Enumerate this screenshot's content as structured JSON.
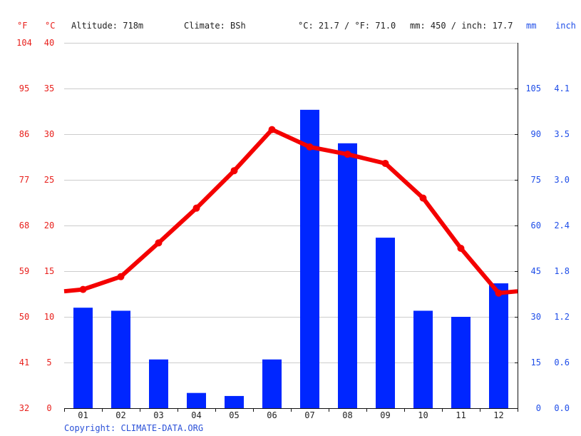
{
  "header": {
    "unit_f": "°F",
    "unit_c": "°C",
    "altitude": "Altitude: 718m",
    "climate": "Climate: BSh",
    "avg_temp": "°C: 21.7 / °F: 71.0",
    "precip_total": "mm: 450 / inch: 17.7",
    "unit_mm": "mm",
    "unit_inch": "inch"
  },
  "footer": {
    "copyright": "Copyright: CLIMATE-DATA.ORG"
  },
  "colors": {
    "temperature": "#f40000",
    "precipitation": "#0026ff",
    "grid": "#cccccc"
  },
  "chart_data": {
    "type": "bar+line",
    "categories": [
      "01",
      "02",
      "03",
      "04",
      "05",
      "06",
      "07",
      "08",
      "09",
      "10",
      "11",
      "12"
    ],
    "series": [
      {
        "kind": "bar",
        "axis": "right",
        "unit": "mm",
        "values": [
          33,
          32,
          16,
          5,
          4,
          16,
          98,
          87,
          56,
          32,
          30,
          41
        ]
      },
      {
        "kind": "line",
        "axis": "left",
        "unit": "°C",
        "values": [
          13.0,
          14.4,
          18.1,
          21.9,
          26.0,
          30.5,
          28.6,
          27.8,
          26.8,
          23.0,
          17.5,
          12.6
        ],
        "edge_values": [
          12.8,
          12.8
        ]
      }
    ],
    "left_axis_c": {
      "ticks": [
        "0",
        "5",
        "10",
        "15",
        "20",
        "25",
        "30",
        "35",
        "40"
      ],
      "ylim": [
        0,
        40
      ]
    },
    "left_axis_f": {
      "ticks": [
        "32",
        "41",
        "50",
        "59",
        "68",
        "77",
        "86",
        "95",
        "104"
      ]
    },
    "right_axis_mm": {
      "ticks": [
        "0",
        "15",
        "30",
        "45",
        "60",
        "75",
        "90",
        "105"
      ],
      "ylim": [
        0,
        120
      ]
    },
    "right_axis_inch": {
      "ticks": [
        "0.0",
        "0.6",
        "1.2",
        "1.8",
        "2.4",
        "3.0",
        "3.5",
        "4.1"
      ]
    },
    "grid": true
  }
}
